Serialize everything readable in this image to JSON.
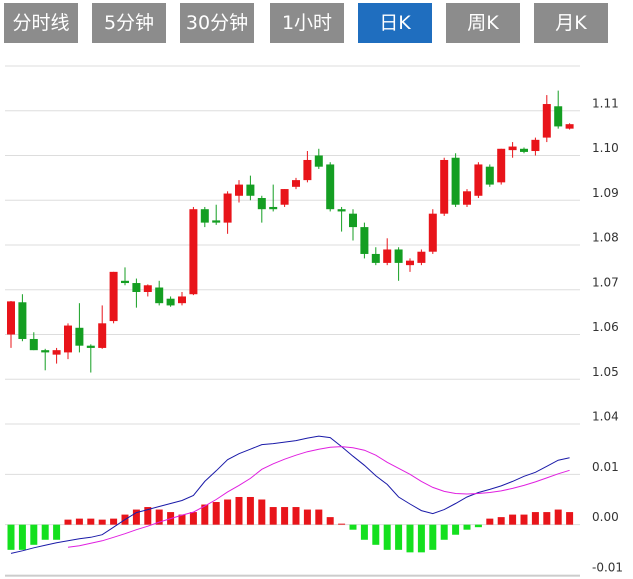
{
  "tabs": [
    "分时线",
    "5分钟",
    "30分钟",
    "1小时",
    "日K",
    "周K",
    "月K"
  ],
  "active_tab": 4,
  "chart_data": [
    {
      "type": "candlestick",
      "up_color": "#e8141a",
      "down_color": "#149e22",
      "ylim": [
        1.04,
        1.12
      ],
      "yticks": [
        1.04,
        1.05,
        1.06,
        1.07,
        1.08,
        1.09,
        {
          "value": 1.1,
          "label": "1.10"
        },
        1.11
      ],
      "open": [
        1.06,
        1.0672,
        1.059,
        1.0565,
        1.0555,
        1.056,
        1.0615,
        1.0575,
        1.057,
        1.063,
        1.072,
        1.0715,
        1.0695,
        1.0705,
        1.068,
        1.067,
        1.069,
        1.088,
        1.0855,
        1.085,
        1.091,
        1.0935,
        1.0905,
        1.0885,
        1.089,
        1.093,
        1.0945,
        1.1,
        1.098,
        1.088,
        1.087,
        1.084,
        1.078,
        1.076,
        1.079,
        1.0755,
        1.076,
        1.0785,
        1.087,
        1.0995,
        1.089,
        1.091,
        1.0975,
        1.094,
        1.1012,
        1.1015,
        1.101,
        1.104,
        1.111,
        1.106
      ],
      "high": [
        1.0675,
        1.069,
        1.0605,
        1.0568,
        1.057,
        1.0625,
        1.067,
        1.0578,
        1.0665,
        1.074,
        1.075,
        1.0725,
        1.0712,
        1.072,
        1.0685,
        1.0695,
        1.0885,
        1.0885,
        1.089,
        1.092,
        1.0945,
        1.0955,
        1.091,
        1.0935,
        1.0925,
        1.095,
        1.101,
        1.1015,
        1.0985,
        1.0885,
        1.088,
        1.085,
        1.0795,
        1.0815,
        1.0795,
        1.077,
        1.079,
        1.088,
        1.0995,
        1.1005,
        1.0925,
        1.0985,
        1.098,
        1.1015,
        1.103,
        1.1018,
        1.104,
        1.1135,
        1.1145,
        1.1072
      ],
      "low": [
        1.057,
        1.0585,
        1.0565,
        1.052,
        1.0535,
        1.0545,
        1.056,
        1.0515,
        1.0568,
        1.0625,
        1.071,
        1.066,
        1.0685,
        1.0665,
        1.0662,
        1.0665,
        1.0688,
        1.084,
        1.0845,
        1.0825,
        1.0895,
        1.09,
        1.085,
        1.0875,
        1.0885,
        1.0925,
        1.094,
        1.097,
        1.0875,
        1.083,
        1.081,
        1.077,
        1.0755,
        1.0755,
        1.072,
        1.074,
        1.0755,
        1.078,
        1.0865,
        1.0885,
        1.0885,
        1.0905,
        1.093,
        1.0935,
        1.0995,
        1.1005,
        1.1,
        1.103,
        1.106,
        1.1058
      ],
      "close": [
        1.0674,
        1.059,
        1.0565,
        1.056,
        1.0565,
        1.062,
        1.0575,
        1.057,
        1.0625,
        1.074,
        1.0715,
        1.0695,
        1.071,
        1.067,
        1.0665,
        1.0685,
        1.088,
        1.085,
        1.085,
        1.0915,
        1.0935,
        1.091,
        1.088,
        1.088,
        1.0925,
        1.0945,
        1.099,
        1.0975,
        1.088,
        1.0875,
        1.084,
        1.078,
        1.076,
        1.079,
        1.076,
        1.0765,
        1.0785,
        1.087,
        1.099,
        1.089,
        1.092,
        1.098,
        1.0935,
        1.1015,
        1.102,
        1.1008,
        1.1035,
        1.1115,
        1.1065,
        1.107
      ]
    },
    {
      "type": "macd",
      "up_color": "#e8141a",
      "down_color": "#14e01e",
      "dif_color": "#1a1aa8",
      "dea_color": "#e020e0",
      "ylim": [
        -0.01,
        0.02
      ],
      "yticks": [
        -0.01,
        {
          "value": 0,
          "label": "0.00"
        },
        0.01
      ],
      "histogram": [
        -0.005,
        -0.005,
        -0.004,
        -0.003,
        -0.003,
        0.001,
        0.0012,
        0.0012,
        0.001,
        0.0012,
        0.002,
        0.003,
        0.0035,
        0.003,
        0.0025,
        0.002,
        0.0025,
        0.004,
        0.0045,
        0.005,
        0.0055,
        0.0055,
        0.005,
        0.0035,
        0.0035,
        0.0035,
        0.003,
        0.003,
        0.0015,
        0.0002,
        -0.001,
        -0.003,
        -0.004,
        -0.005,
        -0.005,
        -0.0055,
        -0.0055,
        -0.005,
        -0.003,
        -0.002,
        -0.001,
        -0.0005,
        0.0012,
        0.0015,
        0.002,
        0.002,
        0.0025,
        0.0025,
        0.003,
        0.0025
      ],
      "dif": [
        -0.0057,
        -0.0052,
        -0.0046,
        -0.0041,
        -0.0036,
        -0.0032,
        -0.0028,
        -0.0025,
        -0.002,
        -0.0005,
        0.001,
        0.0024,
        0.003,
        0.0036,
        0.0042,
        0.0048,
        0.0058,
        0.0086,
        0.0107,
        0.0129,
        0.0141,
        0.015,
        0.0159,
        0.0161,
        0.0164,
        0.0167,
        0.0172,
        0.0176,
        0.0173,
        0.0155,
        0.0136,
        0.0118,
        0.0097,
        0.008,
        0.0055,
        0.0041,
        0.0028,
        0.0022,
        0.003,
        0.0042,
        0.0055,
        0.0064,
        0.007,
        0.0077,
        0.0086,
        0.0096,
        0.0104,
        0.0116,
        0.0128,
        0.0133
      ],
      "dea": [
        null,
        null,
        null,
        null,
        null,
        -0.0045,
        -0.0042,
        -0.0037,
        -0.0032,
        -0.0025,
        -0.0018,
        -0.001,
        -0.0003,
        0.0005,
        0.0012,
        0.0019,
        0.0025,
        0.0037,
        0.005,
        0.0065,
        0.0078,
        0.0092,
        0.011,
        0.0121,
        0.013,
        0.0138,
        0.0145,
        0.015,
        0.0154,
        0.0155,
        0.0153,
        0.0148,
        0.0138,
        0.0124,
        0.0112,
        0.01,
        0.0086,
        0.0074,
        0.0066,
        0.0062,
        0.0061,
        0.0062,
        0.0064,
        0.0067,
        0.0072,
        0.0078,
        0.0085,
        0.0093,
        0.0101,
        0.0108
      ]
    }
  ]
}
